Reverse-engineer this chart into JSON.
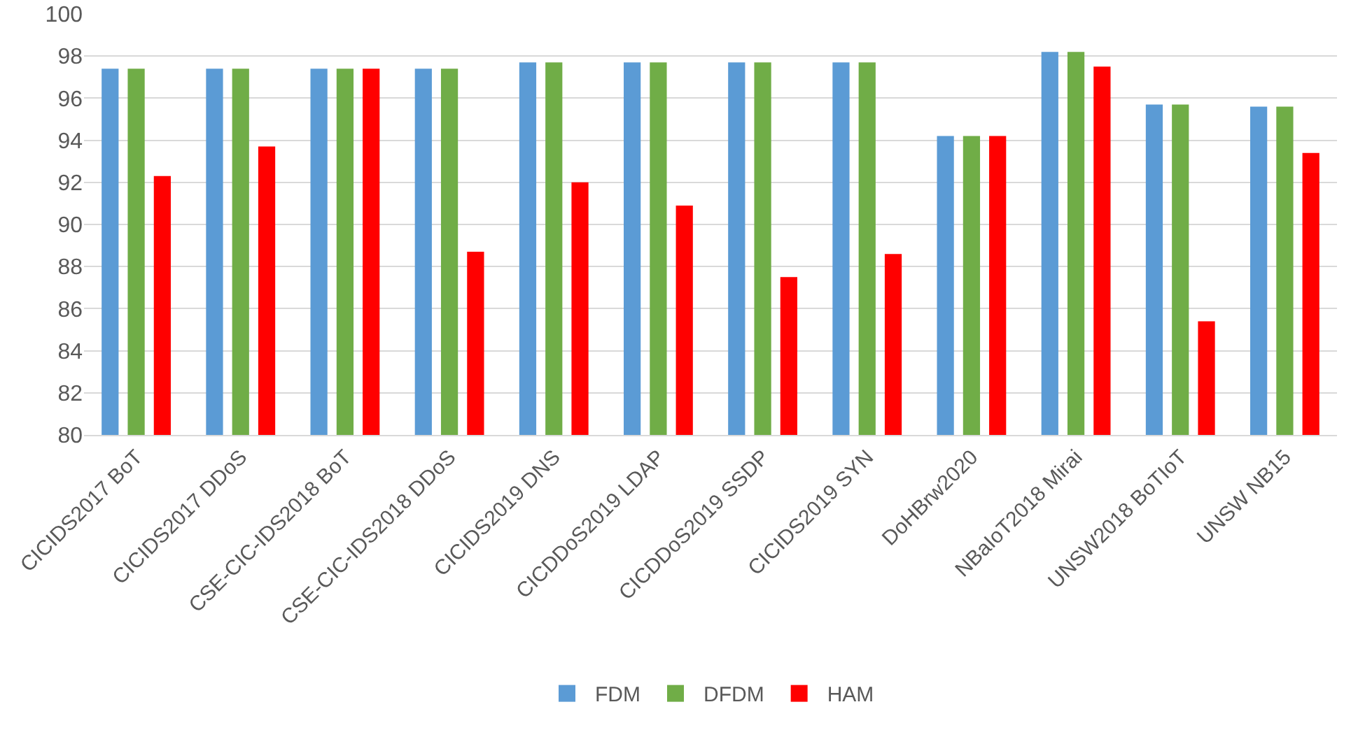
{
  "chart_data": {
    "type": "bar",
    "categories": [
      "CICIDS2017 BoT",
      "CICIDS2017 DDoS",
      "CSE-CIC-IDS2018 BoT",
      "CSE-CIC-IDS2018 DDoS",
      "CICIDS2019 DNS",
      "CICDDoS2019 LDAP",
      "CICDDoS2019 SSDP",
      "CICIDS2019 SYN",
      "DoHBrw2020",
      "NBaIoT2018 Mirai",
      "UNSW2018 BoTIoT",
      "UNSW NB15"
    ],
    "series": [
      {
        "name": "FDM",
        "color": "#5b9bd5",
        "values": [
          97.4,
          97.4,
          97.4,
          97.4,
          97.7,
          97.7,
          97.7,
          97.7,
          94.2,
          98.2,
          95.7,
          95.6
        ]
      },
      {
        "name": "DFDM",
        "color": "#70ad47",
        "values": [
          97.4,
          97.4,
          97.4,
          97.4,
          97.7,
          97.7,
          97.7,
          97.7,
          94.2,
          98.2,
          95.7,
          95.6
        ]
      },
      {
        "name": "HAM",
        "color": "#ff0000",
        "values": [
          92.3,
          93.7,
          97.4,
          88.7,
          92.0,
          90.9,
          87.5,
          88.6,
          94.2,
          97.5,
          85.4,
          93.4
        ]
      }
    ],
    "ylim": [
      80,
      100
    ],
    "yticks": [
      80,
      82,
      84,
      86,
      88,
      90,
      92,
      94,
      96,
      98,
      100
    ],
    "grid": "y",
    "legend": "bottom"
  }
}
